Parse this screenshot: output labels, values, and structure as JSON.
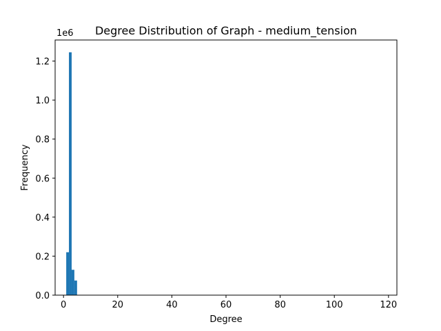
{
  "chart_data": {
    "type": "bar",
    "title": "Degree Distribution of Graph - medium_tension",
    "xlabel": "Degree",
    "ylabel": "Frequency",
    "y_offset_label": "1e6",
    "y_multiplier": 1000000,
    "xlim": [
      -3.1,
      123.1
    ],
    "ylim": [
      0,
      1308000
    ],
    "x_ticks": [
      0,
      20,
      40,
      60,
      80,
      100,
      120
    ],
    "y_ticks": [
      0.0,
      0.2,
      0.4,
      0.6,
      0.8,
      1.0,
      1.2
    ],
    "x_tick_labels": [
      "0",
      "20",
      "40",
      "60",
      "80",
      "100",
      "120"
    ],
    "y_tick_labels": [
      "0.0",
      "0.2",
      "0.4",
      "0.6",
      "0.8",
      "1.0",
      "1.2"
    ],
    "bin_width": 1.0,
    "bins": [
      {
        "x": 1.5,
        "value": 220000
      },
      {
        "x": 2.5,
        "value": 1245000
      },
      {
        "x": 3.5,
        "value": 130000
      },
      {
        "x": 4.5,
        "value": 75000
      }
    ],
    "bar_color": "#1f77b4",
    "grid": false
  }
}
